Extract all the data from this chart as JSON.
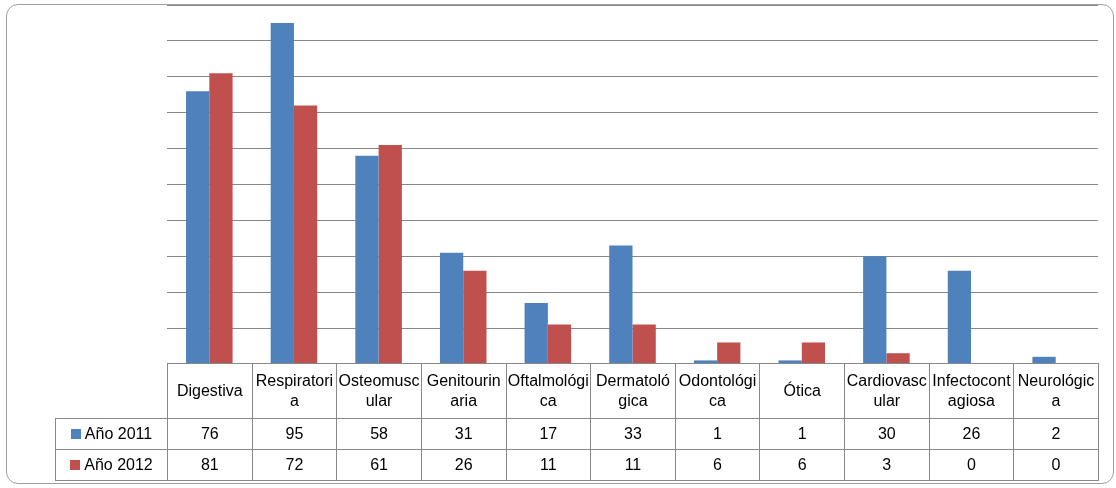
{
  "chart_data": {
    "type": "bar",
    "categories": [
      "Digestiva",
      "Respiratoria",
      "Osteomuscular",
      "Genitourinaria",
      "Oftalmológica",
      "Dermatológica",
      "Odontológica",
      "Ótica",
      "Cardiovascular",
      "Infectocontagiosa",
      "Neurológica"
    ],
    "series": [
      {
        "name": "Año 2011",
        "color": "#4f81bd",
        "values": [
          76,
          95,
          58,
          31,
          17,
          33,
          1,
          1,
          30,
          26,
          2
        ]
      },
      {
        "name": "Año 2012",
        "color": "#c0504d",
        "values": [
          81,
          72,
          61,
          26,
          11,
          11,
          6,
          6,
          3,
          0,
          0
        ]
      }
    ],
    "grid": "y",
    "tick_labels": false,
    "data_labels": true,
    "legend": "bottom"
  }
}
